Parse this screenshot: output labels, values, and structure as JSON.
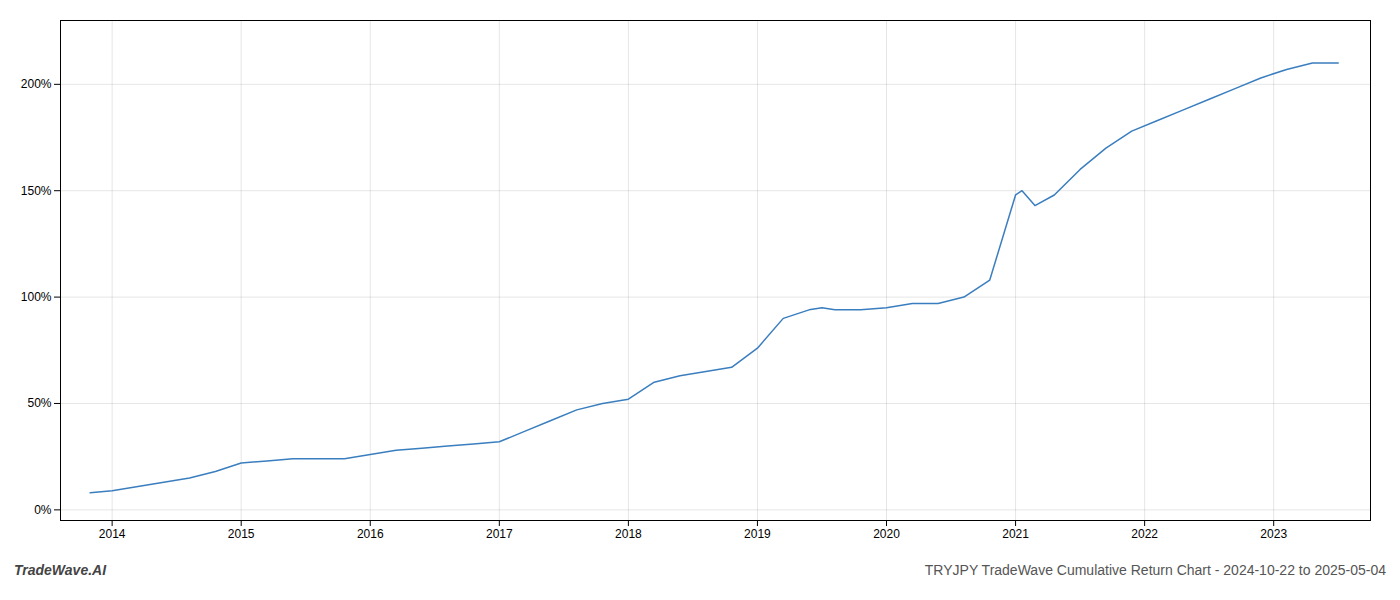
{
  "chart_data": {
    "type": "line",
    "title": "TRYJPY TradeWave Cumulative Return Chart - 2024-10-22 to 2025-05-04",
    "annotations": [
      "TradeWave.AI"
    ],
    "color": "#3a7ebf",
    "grid": true,
    "x": [
      2013.83,
      2014.0,
      2014.2,
      2014.4,
      2014.6,
      2014.8,
      2015.0,
      2015.2,
      2015.4,
      2015.6,
      2015.8,
      2016.0,
      2016.2,
      2016.4,
      2016.6,
      2016.8,
      2017.0,
      2017.2,
      2017.4,
      2017.6,
      2017.8,
      2018.0,
      2018.2,
      2018.4,
      2018.6,
      2018.8,
      2019.0,
      2019.2,
      2019.4,
      2019.5,
      2019.6,
      2019.8,
      2020.0,
      2020.2,
      2020.4,
      2020.6,
      2020.8,
      2021.0,
      2021.05,
      2021.15,
      2021.3,
      2021.5,
      2021.7,
      2021.9,
      2022.1,
      2022.3,
      2022.5,
      2022.7,
      2022.9,
      2023.1,
      2023.3,
      2023.5
    ],
    "values": [
      8,
      9,
      11,
      13,
      15,
      18,
      22,
      23,
      24,
      24,
      24,
      26,
      28,
      29,
      30,
      31,
      32,
      37,
      42,
      47,
      50,
      52,
      60,
      63,
      65,
      67,
      76,
      90,
      94,
      95,
      94,
      94,
      95,
      97,
      97,
      100,
      108,
      148,
      150,
      143,
      148,
      160,
      170,
      178,
      183,
      188,
      193,
      198,
      203,
      207,
      210,
      210
    ],
    "xlim": [
      2013.6,
      2023.75
    ],
    "xticks": [
      2014,
      2015,
      2016,
      2017,
      2018,
      2019,
      2020,
      2021,
      2022,
      2023
    ],
    "ylim": [
      -5,
      230
    ],
    "yticks": [
      {
        "value": 0,
        "label": "0%"
      },
      {
        "value": 50,
        "label": "50%"
      },
      {
        "value": 100,
        "label": "100%"
      },
      {
        "value": 150,
        "label": "150%"
      },
      {
        "value": 200,
        "label": "200%"
      }
    ]
  }
}
